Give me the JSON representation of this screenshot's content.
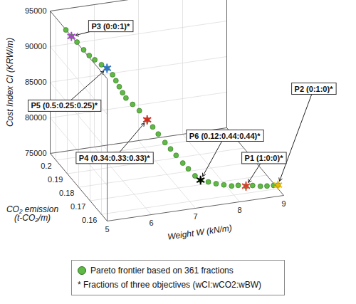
{
  "chart_data": {
    "type": "scatter",
    "x_label": "Weight W (kN/m)",
    "y_label": "CO₂ emission (t-CO₂/m)",
    "z_label": "Cost Index CI (KRW/m)",
    "xlim": [
      5,
      9
    ],
    "ylim": [
      0.155,
      0.205
    ],
    "zlim": [
      75000,
      95000
    ],
    "xticks": [
      5,
      6,
      7,
      8,
      9
    ],
    "yticks": [
      0.16,
      0.17,
      0.18,
      0.19,
      0.2
    ],
    "zticks": [
      75000,
      80000,
      85000,
      90000,
      95000
    ],
    "grid": true,
    "legend": "bottom",
    "legend_note": "* Fractions of three objectives (wCI:wCO2:wBW)",
    "series": [
      {
        "name": "Pareto frontier based on 361 fractions",
        "color": "#5fb944",
        "marker": "circle",
        "values": [
          [
            5.2,
            0.199,
            93300
          ],
          [
            5.3,
            0.198,
            92500
          ],
          [
            5.4,
            0.197,
            91800
          ],
          [
            5.5,
            0.195,
            91000
          ],
          [
            5.6,
            0.194,
            90300
          ],
          [
            5.7,
            0.193,
            89800
          ],
          [
            5.8,
            0.191,
            89400
          ],
          [
            5.9,
            0.19,
            89000
          ],
          [
            6.0,
            0.189,
            88200
          ],
          [
            6.05,
            0.188,
            87500
          ],
          [
            6.1,
            0.187,
            86800
          ],
          [
            6.15,
            0.186,
            86100
          ],
          [
            6.2,
            0.185,
            85500
          ],
          [
            6.3,
            0.183,
            84900
          ],
          [
            6.4,
            0.181,
            84300
          ],
          [
            6.5,
            0.178,
            83500
          ],
          [
            6.6,
            0.177,
            82600
          ],
          [
            6.7,
            0.176,
            81700
          ],
          [
            6.8,
            0.174,
            80800
          ],
          [
            6.9,
            0.173,
            80000
          ],
          [
            7.0,
            0.172,
            79200
          ],
          [
            7.1,
            0.17,
            78400
          ],
          [
            7.2,
            0.169,
            77700
          ],
          [
            7.3,
            0.167,
            77000
          ],
          [
            7.4,
            0.166,
            76500
          ],
          [
            7.55,
            0.165,
            76300
          ],
          [
            7.7,
            0.164,
            76100
          ],
          [
            7.85,
            0.163,
            76000
          ],
          [
            8.0,
            0.162,
            75900
          ],
          [
            8.15,
            0.162,
            75850
          ],
          [
            8.3,
            0.161,
            75800
          ],
          [
            8.45,
            0.161,
            75750
          ],
          [
            8.6,
            0.16,
            75700
          ],
          [
            8.75,
            0.16,
            75600
          ],
          [
            8.9,
            0.16,
            75550
          ],
          [
            9.0,
            0.16,
            75500
          ]
        ]
      }
    ],
    "highlights": [
      {
        "label": "P1 (1:0:0)*",
        "color": "#e8362c",
        "marker": "asterisk",
        "value": [
          8.3,
          0.161,
          75800
        ]
      },
      {
        "label": "P2 (0:1:0)*",
        "color": "#f2b800",
        "marker": "asterisk",
        "value": [
          9.0,
          0.16,
          75500
        ]
      },
      {
        "label": "P3 (0:0:1)*",
        "color": "#b03fd8",
        "marker": "asterisk",
        "value": [
          5.3,
          0.198,
          92500
        ]
      },
      {
        "label": "P4 (0.34:0.33:0.33)*",
        "color": "#d7261e",
        "marker": "asterisk",
        "value": [
          6.5,
          0.178,
          83500
        ]
      },
      {
        "label": "P5 (0.5:0.25:0.25)*",
        "color": "#2e6fd8",
        "marker": "asterisk",
        "value": [
          5.9,
          0.19,
          89000
        ]
      },
      {
        "label": "P6 (0.12:0.44:0.44)*",
        "color": "#000000",
        "marker": "asterisk",
        "value": [
          7.4,
          0.166,
          76500
        ]
      }
    ]
  }
}
